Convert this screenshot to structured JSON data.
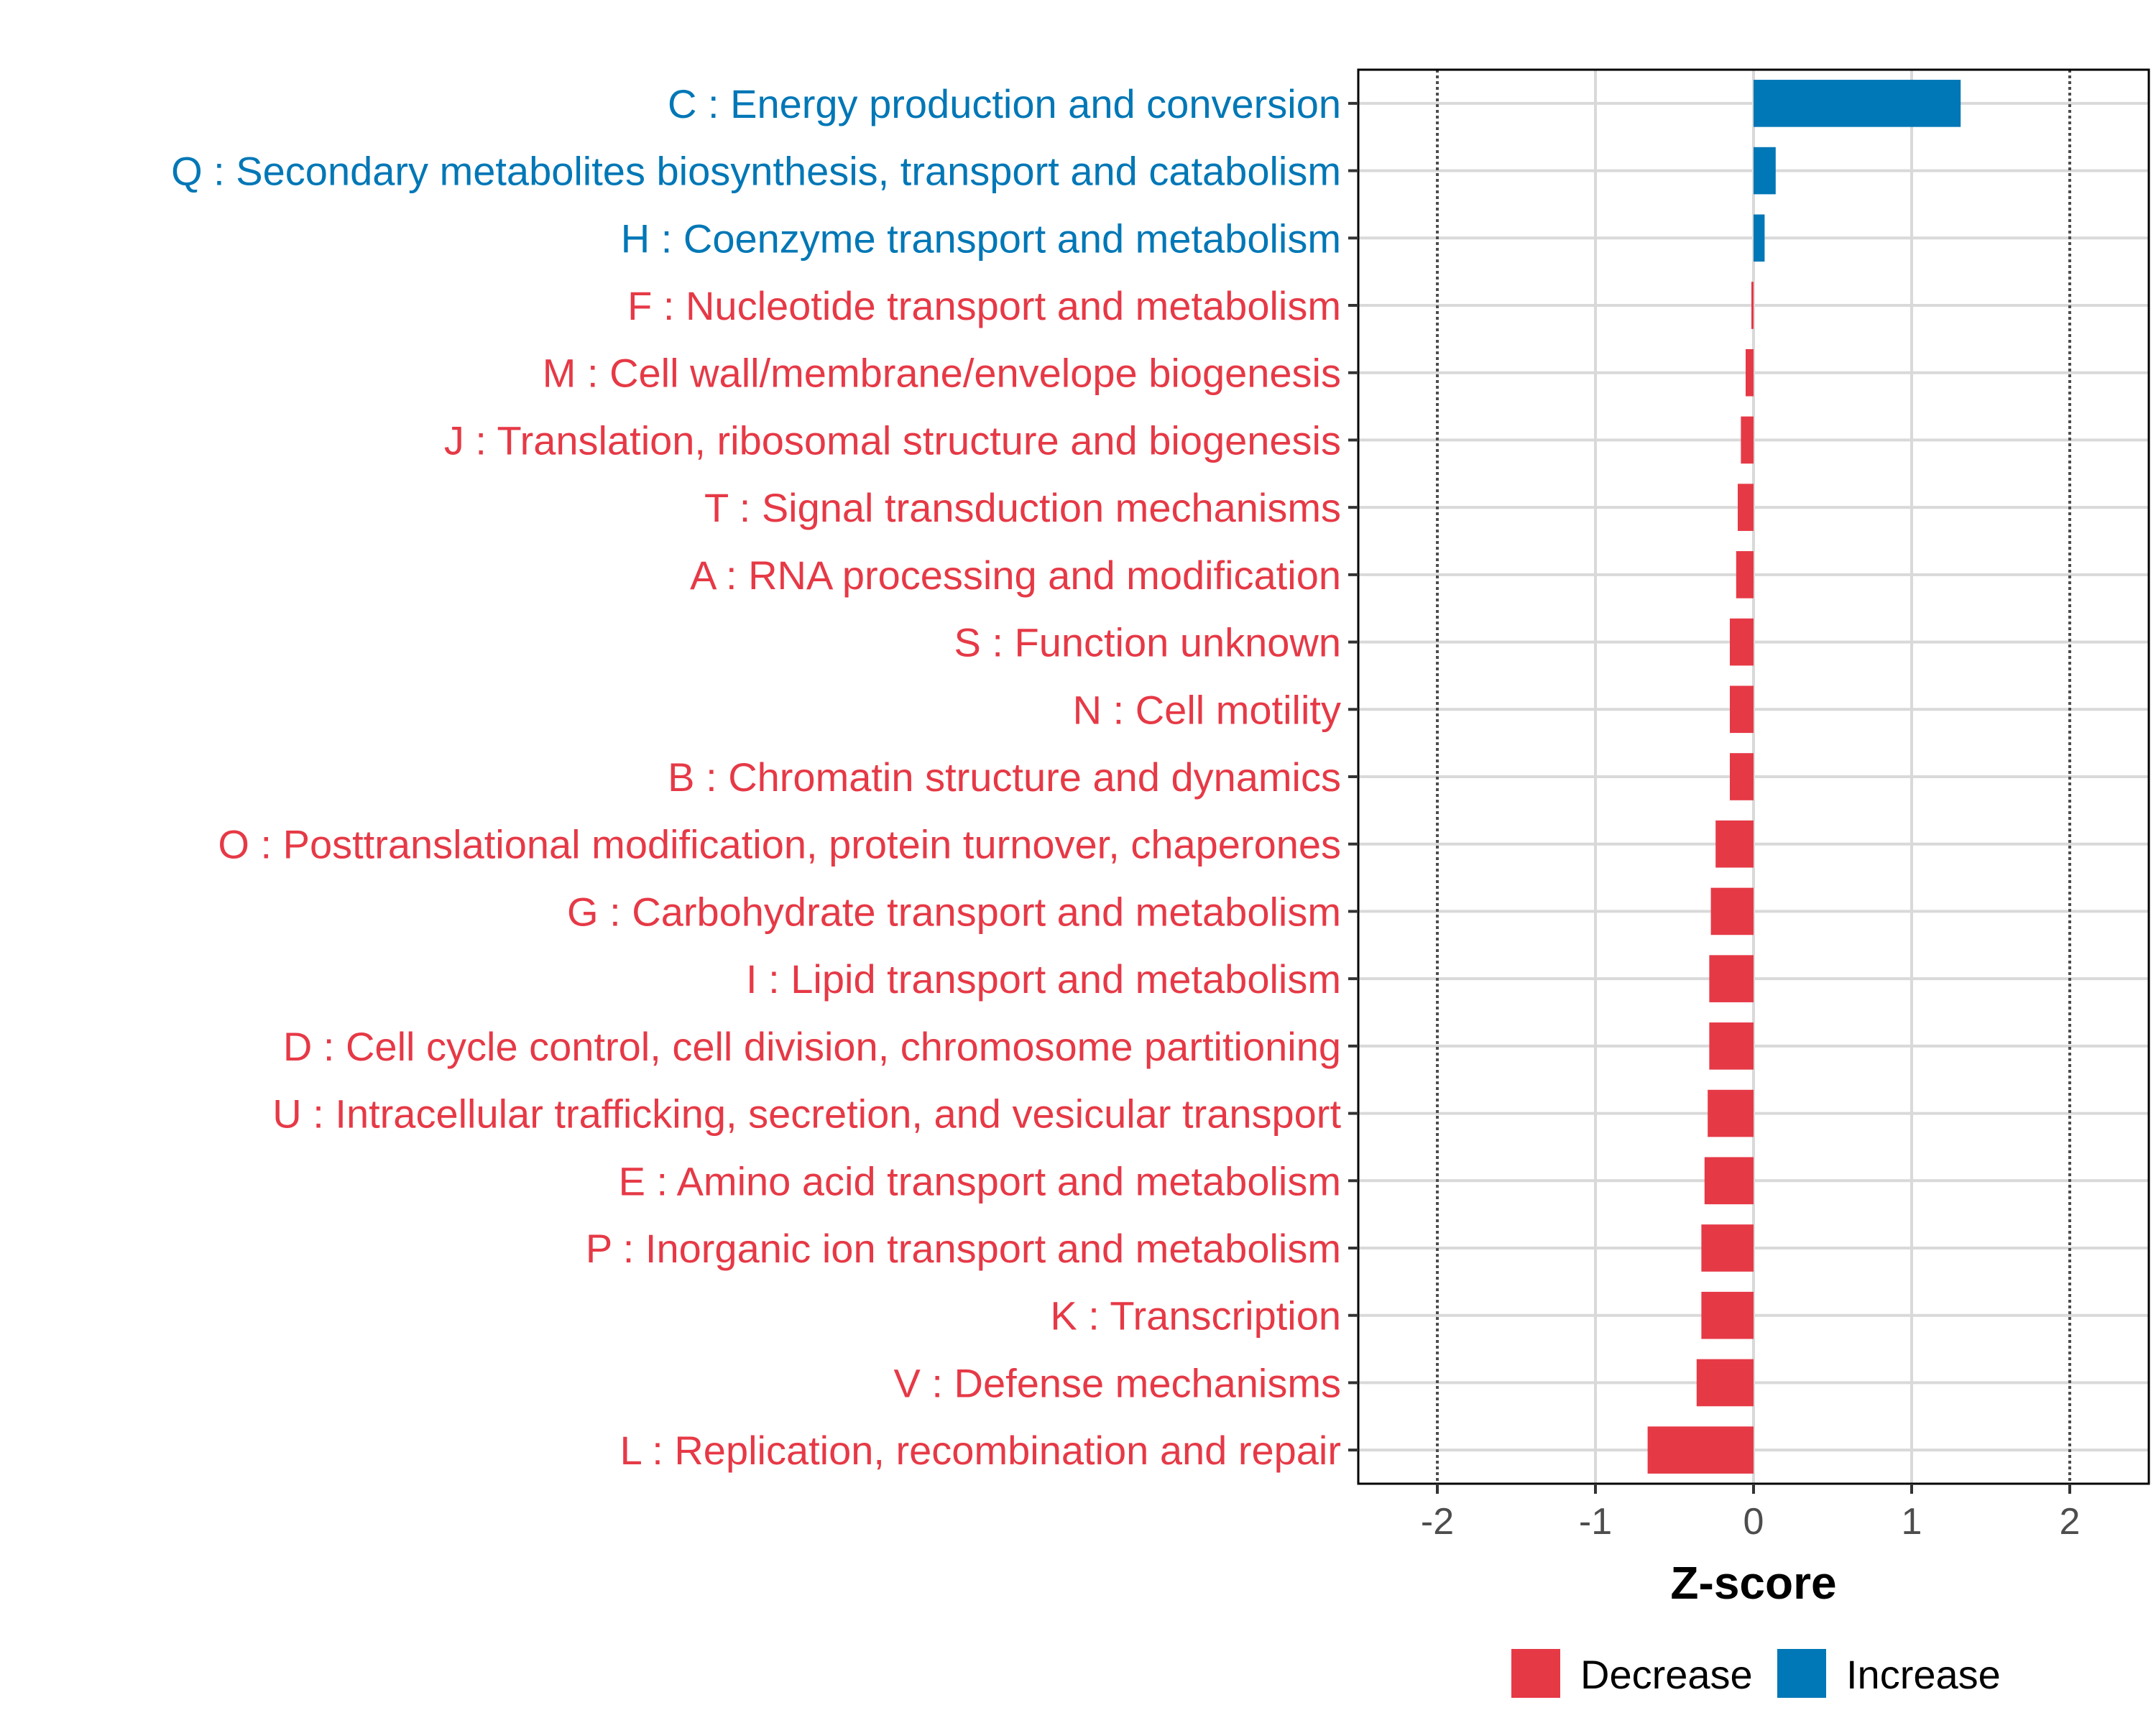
{
  "colors": {
    "decrease": "#E63946",
    "increase": "#0077B6",
    "grid": "#d9d9d9",
    "axis": "#000000",
    "threshold": "#4d4d4d"
  },
  "chart_data": {
    "type": "bar",
    "orientation": "horizontal",
    "xlabel": "Z-score",
    "xlim": [
      -2.5,
      2.5
    ],
    "xticks": [
      -2,
      -1,
      0,
      1,
      2
    ],
    "xtick_labels": [
      "-2",
      "-1",
      "0",
      "1",
      "2"
    ],
    "threshold_lines": [
      -2,
      2
    ],
    "grid": true,
    "legend": {
      "position": "bottom-right",
      "entries": [
        {
          "label": "Decrease",
          "color_key": "decrease"
        },
        {
          "label": "Increase",
          "color_key": "increase"
        }
      ]
    },
    "categories": [
      "C : Energy production and conversion",
      "Q : Secondary metabolites biosynthesis, transport and catabolism",
      "H : Coenzyme transport and metabolism",
      "F : Nucleotide transport and metabolism",
      "M : Cell wall/membrane/envelope biogenesis",
      "J : Translation, ribosomal structure and biogenesis",
      "T : Signal transduction mechanisms",
      "A : RNA processing and modification",
      "S : Function unknown",
      "N : Cell motility",
      "B : Chromatin structure and dynamics",
      "O : Posttranslational modification, protein turnover, chaperones",
      "G : Carbohydrate transport and metabolism",
      "I : Lipid transport and metabolism",
      "D : Cell cycle control, cell division, chromosome partitioning",
      "U : Intracellular trafficking, secretion, and vesicular transport",
      "E : Amino acid transport and metabolism",
      "P : Inorganic ion transport and metabolism",
      "K : Transcription",
      "V : Defense mechanisms",
      "L : Replication, recombination and repair"
    ],
    "values": [
      1.31,
      0.14,
      0.07,
      -0.01,
      -0.05,
      -0.08,
      -0.1,
      -0.11,
      -0.15,
      -0.15,
      -0.15,
      -0.24,
      -0.27,
      -0.28,
      -0.28,
      -0.29,
      -0.31,
      -0.33,
      -0.33,
      -0.36,
      -0.67
    ],
    "direction": [
      "Increase",
      "Increase",
      "Increase",
      "Decrease",
      "Decrease",
      "Decrease",
      "Decrease",
      "Decrease",
      "Decrease",
      "Decrease",
      "Decrease",
      "Decrease",
      "Decrease",
      "Decrease",
      "Decrease",
      "Decrease",
      "Decrease",
      "Decrease",
      "Decrease",
      "Decrease",
      "Decrease"
    ]
  }
}
